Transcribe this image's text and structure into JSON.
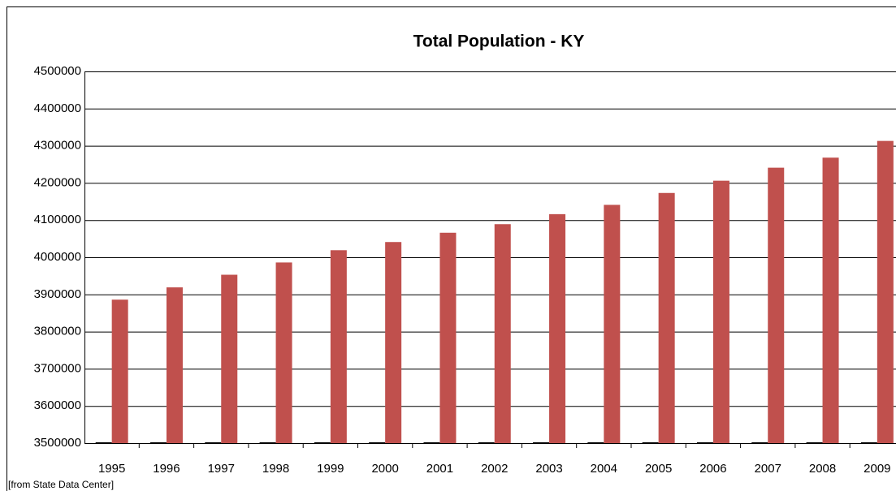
{
  "chart_data": {
    "type": "bar",
    "title": "Total Population - KY",
    "note": "[from State Data Center]",
    "categories": [
      "1995",
      "1996",
      "1997",
      "1998",
      "1999",
      "2000",
      "2001",
      "2002",
      "2003",
      "2004",
      "2005",
      "2006",
      "2007",
      "2008",
      "2009"
    ],
    "series": [
      {
        "color": "#000000",
        "values": [
          1995,
          1996,
          1997,
          1998,
          1999,
          2000,
          2001,
          2002,
          2003,
          2004,
          2005,
          2006,
          2007,
          2008,
          2009
        ]
      },
      {
        "color": "#c0504d",
        "values": [
          3886000,
          3919000,
          3953000,
          3986000,
          4019000,
          4041000,
          4066000,
          4089000,
          4116000,
          4141000,
          4173000,
          4206000,
          4241000,
          4268000,
          4313000
        ]
      }
    ],
    "ylim": [
      3500000,
      4500000
    ],
    "yticks": [
      3500000,
      3600000,
      3700000,
      3800000,
      3900000,
      4000000,
      4100000,
      4200000,
      4300000,
      4400000,
      4500000
    ],
    "grid": true
  }
}
